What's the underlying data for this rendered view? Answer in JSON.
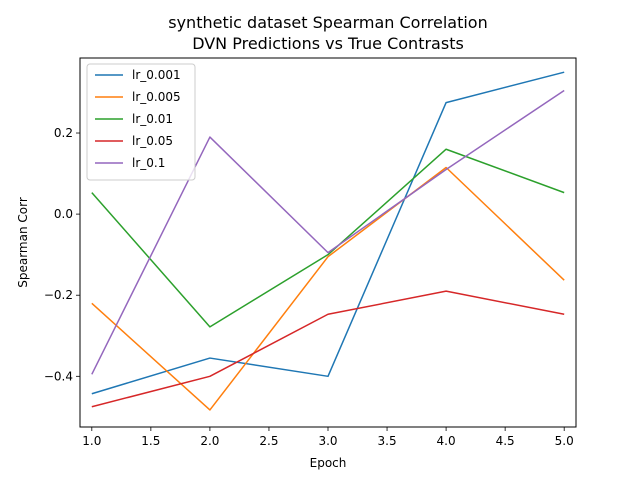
{
  "chart_data": {
    "type": "line",
    "title": "synthetic dataset Spearman Correlation",
    "subtitle": "DVN Predictions vs True Contrasts",
    "xlabel": "Epoch",
    "ylabel": "Spearman Corr",
    "x": [
      1.0,
      2.0,
      3.0,
      4.0,
      5.0
    ],
    "xlim": [
      0.9,
      5.1
    ],
    "ylim": [
      -0.525,
      0.385
    ],
    "x_ticks": [
      1.0,
      1.5,
      2.0,
      2.5,
      3.0,
      3.5,
      4.0,
      4.5,
      5.0
    ],
    "x_tick_labels": [
      "1.0",
      "1.5",
      "2.0",
      "2.5",
      "3.0",
      "3.5",
      "4.0",
      "4.5",
      "5.0"
    ],
    "y_ticks": [
      -0.4,
      -0.2,
      0.0,
      0.2
    ],
    "y_tick_labels": [
      "−0.4",
      "−0.2",
      "0.0",
      "0.2"
    ],
    "grid": false,
    "legend_position": "top-left",
    "series": [
      {
        "name": "lr_0.001",
        "color": "#1f77b4",
        "values": [
          -0.443,
          -0.355,
          -0.4,
          0.275,
          0.35
        ]
      },
      {
        "name": "lr_0.005",
        "color": "#ff7f0e",
        "values": [
          -0.22,
          -0.483,
          -0.105,
          0.115,
          -0.163
        ]
      },
      {
        "name": "lr_0.01",
        "color": "#2ca02c",
        "values": [
          0.053,
          -0.278,
          -0.1,
          0.16,
          0.053
        ]
      },
      {
        "name": "lr_0.05",
        "color": "#d62728",
        "values": [
          -0.475,
          -0.4,
          -0.247,
          -0.19,
          -0.247
        ]
      },
      {
        "name": "lr_0.1",
        "color": "#9467bd",
        "values": [
          -0.395,
          0.19,
          -0.095,
          0.11,
          0.305
        ]
      }
    ]
  }
}
